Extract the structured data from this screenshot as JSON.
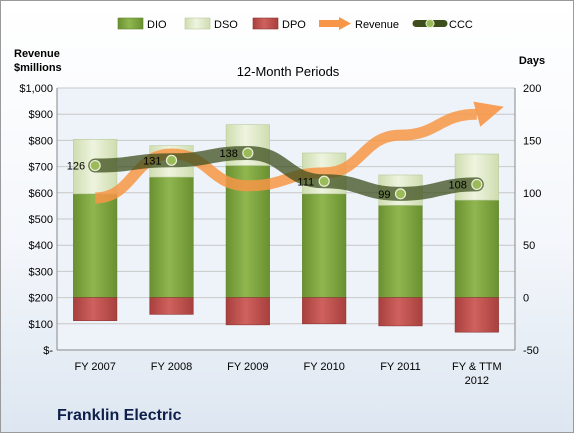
{
  "company": "Franklin Electric",
  "chart_data": {
    "type": "bar",
    "title": "12-Month Periods",
    "y_left_label": [
      "Revenue",
      "$millions"
    ],
    "y_right_label": "Days",
    "categories": [
      "FY 2007",
      "FY 2008",
      "FY 2009",
      "FY 2010",
      "FY 2011",
      "FY & TTM 2012"
    ],
    "left_axis": {
      "ylim": [
        0,
        1000
      ],
      "ticks": [
        0,
        100,
        200,
        300,
        400,
        500,
        600,
        700,
        800,
        900,
        1000
      ],
      "tick_labels": [
        "$-",
        "$100",
        "$200",
        "$300",
        "$400",
        "$500",
        "$600",
        "$700",
        "$800",
        "$900",
        "$1,000"
      ]
    },
    "right_axis": {
      "ylim": [
        -50,
        200
      ],
      "ticks": [
        -50,
        0,
        50,
        100,
        150,
        200
      ],
      "tick_labels": [
        "-50",
        "0",
        "50",
        "100",
        "150",
        "200"
      ]
    },
    "legend": {
      "position": "top",
      "entries": [
        "DIO",
        "DSO",
        "DPO",
        "Revenue",
        "CCC"
      ]
    },
    "series": [
      {
        "name": "DIO",
        "axis": "right",
        "kind": "stacked-bar",
        "color": "#77a033",
        "values": [
          99,
          115,
          126,
          99,
          88,
          93
        ]
      },
      {
        "name": "DSO",
        "axis": "right",
        "kind": "stacked-bar",
        "color": "#d7e4bd",
        "values": [
          52,
          30,
          39,
          39,
          29,
          44
        ]
      },
      {
        "name": "DPO",
        "axis": "right",
        "kind": "negative-bar",
        "color": "#c0504d",
        "values": [
          -22,
          -16,
          -26,
          -25,
          -27,
          -33
        ]
      },
      {
        "name": "Revenue",
        "axis": "left",
        "kind": "arrow",
        "color": "#f79646",
        "values": [
          580,
          748,
          627,
          676,
          820,
          900
        ]
      },
      {
        "name": "CCC",
        "axis": "right",
        "kind": "line",
        "color": "#4f6228",
        "values": [
          126,
          131,
          138,
          111,
          99,
          108
        ]
      }
    ],
    "data_labels": [
      "126",
      "131",
      "138",
      "111",
      "99",
      "108"
    ],
    "grid": true,
    "colors": {
      "axis_text": "#000000",
      "grid": "#c8c8c8",
      "ccc_dot": "#9bbb59"
    }
  }
}
